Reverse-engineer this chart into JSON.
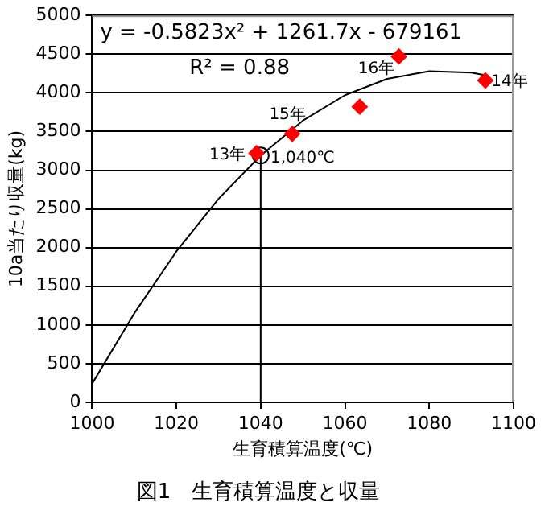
{
  "chart_data": {
    "type": "scatter",
    "title": "図1　生育積算温度と収量",
    "xlabel": "生育積算温度(℃)",
    "ylabel": "10a当たり収量(kg)",
    "xlim": [
      1000,
      1100
    ],
    "xticks": [
      1000,
      1020,
      1040,
      1060,
      1080,
      1100
    ],
    "ylim": [
      0,
      5000
    ],
    "yticks": [
      0,
      500,
      1000,
      1500,
      2000,
      2500,
      3000,
      3500,
      4000,
      4500,
      5000
    ],
    "grid": "y",
    "legend": false,
    "series": [
      {
        "type": "scatter",
        "marker": "diamond",
        "color": "#ff0000",
        "x": [
          1039,
          1047.5,
          1063.5,
          1072.8,
          1093.3
        ],
        "values": [
          3220,
          3470,
          3820,
          4470,
          4160
        ]
      },
      {
        "type": "line",
        "marker": "none",
        "color": "#000000",
        "x": [
          1000,
          1010,
          1020,
          1030,
          1040,
          1050,
          1060,
          1070,
          1080,
          1090,
          1094
        ],
        "values": [
          240,
          1150,
          1950,
          2630,
          3190,
          3640,
          3970,
          4180,
          4280,
          4260,
          4220
        ]
      },
      {
        "type": "line",
        "marker": "none",
        "color": "#000000",
        "x": [
          1040,
          1040
        ],
        "values": [
          0,
          3190
        ]
      },
      {
        "type": "scatter",
        "marker": "circle",
        "color": "#000000",
        "x": [
          1040
        ],
        "values": [
          3190
        ]
      }
    ],
    "annotations": [
      "y = -0.5823x² + 1261.7x - 679161",
      "R² = 0.88",
      {
        "text": "13年",
        "x": 1039,
        "y": 3220
      },
      {
        "text": "15年",
        "x": 1047.5,
        "y": 3470
      },
      {
        "text": "16年",
        "x": 1072.8,
        "y": 4470
      },
      {
        "text": "14年",
        "x": 1093.3,
        "y": 4160
      },
      {
        "text": "1,040℃",
        "x": 1040,
        "y": 3190
      }
    ]
  }
}
